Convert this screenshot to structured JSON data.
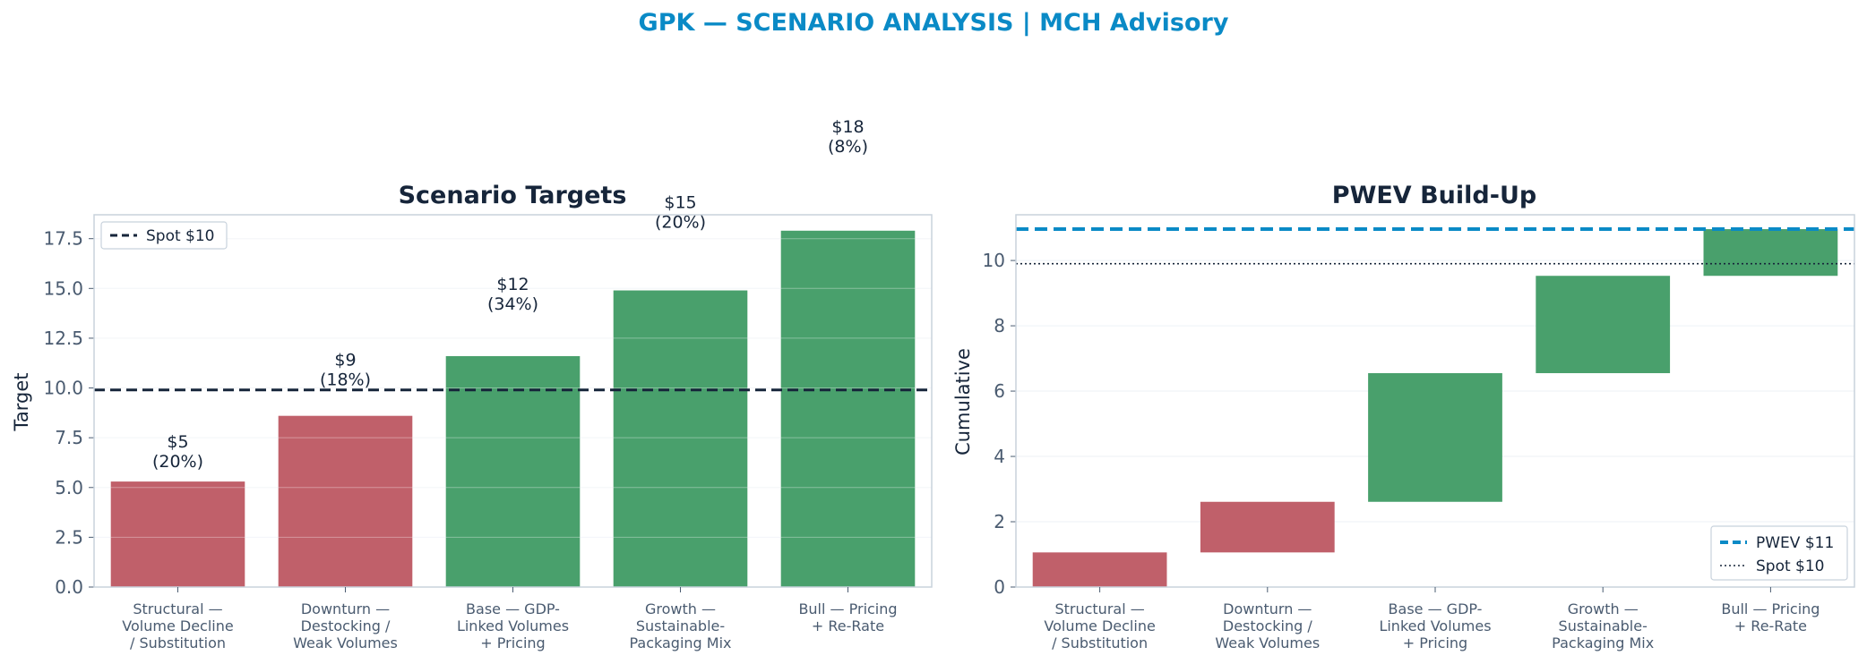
{
  "figure_title": "GPK — SCENARIO ANALYSIS | MCH Advisory",
  "colors": {
    "title": "#0a8ac6",
    "dark": "#16253a",
    "axis_text": "#4a5b70",
    "red": "#c0606a",
    "green": "#49a06c",
    "blue_dash": "#0a8ac6",
    "frame": "#c8d2dc",
    "grid": "#eef2f6"
  },
  "chart_data": [
    {
      "type": "bar",
      "title": "Scenario Targets",
      "ylabel": "Target",
      "xlabel": "",
      "ylim": [
        0,
        18.7
      ],
      "yticks": [
        "0.0",
        "2.5",
        "5.0",
        "7.5",
        "10.0",
        "12.5",
        "15.0",
        "17.5"
      ],
      "categories": [
        [
          "Structural —",
          "Volume Decline",
          "/ Substitution"
        ],
        [
          "Downturn —",
          "Destocking /",
          "Weak Volumes"
        ],
        [
          "Base — GDP-",
          "Linked Volumes",
          "+ Pricing"
        ],
        [
          "Growth —",
          "Sustainable-",
          "Packaging Mix"
        ],
        [
          "Bull — Pricing",
          "+ Re-Rate"
        ]
      ],
      "values": [
        5.3,
        8.6,
        11.6,
        14.9,
        17.9
      ],
      "colors": [
        "red",
        "red",
        "green",
        "green",
        "green"
      ],
      "data_labels": [
        [
          "$5",
          "(20%)"
        ],
        [
          "$9",
          "(18%)"
        ],
        [
          "$12",
          "(34%)"
        ],
        [
          "$15",
          "(20%)"
        ],
        [
          "$18",
          "(8%)"
        ]
      ],
      "reference_line": {
        "value": 9.9,
        "label": "Spot $10"
      },
      "legend": "top-left",
      "grid": true
    },
    {
      "type": "waterfall",
      "title": "PWEV Build-Up",
      "ylabel": "Cumulative",
      "xlabel": "",
      "ylim": [
        0,
        11.4
      ],
      "yticks": [
        "0",
        "2",
        "4",
        "6",
        "8",
        "10"
      ],
      "categories": [
        [
          "Structural —",
          "Volume Decline",
          "/ Substitution"
        ],
        [
          "Downturn —",
          "Destocking /",
          "Weak Volumes"
        ],
        [
          "Base — GDP-",
          "Linked Volumes",
          "+ Pricing"
        ],
        [
          "Growth —",
          "Sustainable-",
          "Packaging Mix"
        ],
        [
          "Bull — Pricing",
          "+ Re-Rate"
        ]
      ],
      "bars": [
        {
          "start": 0.0,
          "end": 1.06,
          "color": "red"
        },
        {
          "start": 1.06,
          "end": 2.61,
          "color": "red"
        },
        {
          "start": 2.61,
          "end": 6.55,
          "color": "green"
        },
        {
          "start": 6.55,
          "end": 9.53,
          "color": "green"
        },
        {
          "start": 9.53,
          "end": 10.96,
          "color": "green"
        }
      ],
      "pwev_line": {
        "value": 10.96,
        "label": "PWEV $11"
      },
      "spot_line": {
        "value": 9.9,
        "label": "Spot $10"
      },
      "legend": "bottom-right",
      "grid": true
    }
  ]
}
